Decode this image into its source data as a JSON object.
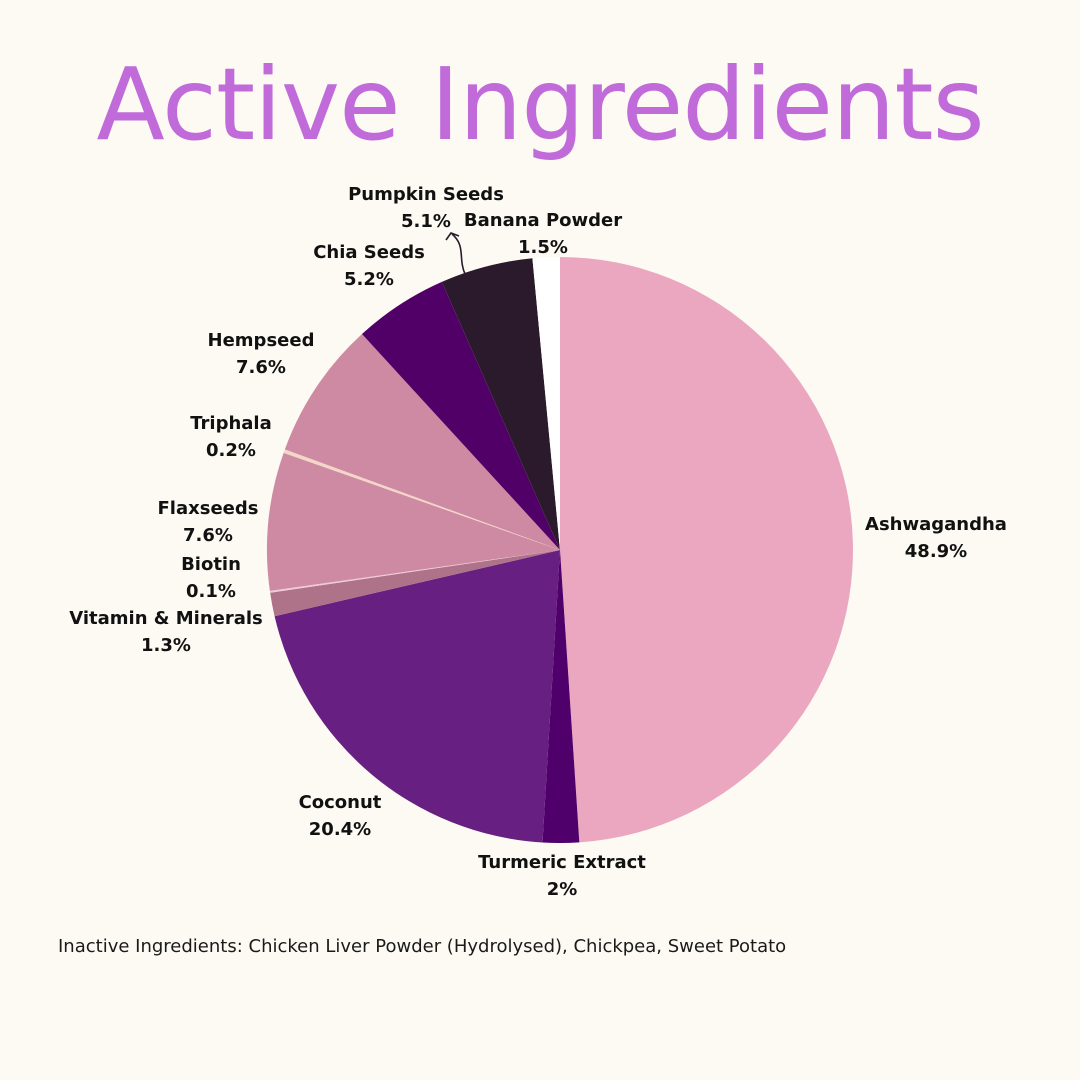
{
  "title": "Active Ingredients",
  "footnote": "Inactive Ingredients: Chicken Liver Powder (Hydrolysed), Chickpea, Sweet Potato",
  "chart_data": {
    "type": "pie",
    "title": "Active Ingredients",
    "start_angle_deg": 0,
    "direction": "clockwise",
    "slices": [
      {
        "label": "Ashwagandha",
        "value_label": "48.9%",
        "value": 48.9,
        "color": "#EAA7BF"
      },
      {
        "label": "Turmeric Extract",
        "value_label": "2%",
        "value": 2.0,
        "color": "#4F006A"
      },
      {
        "label": "Coconut",
        "value_label": "20.4%",
        "value": 20.4,
        "color": "#681F82"
      },
      {
        "label": "Vitamin & Minerals",
        "value_label": "1.3%",
        "value": 1.3,
        "color": "#AE7388"
      },
      {
        "label": "Biotin",
        "value_label": "0.1%",
        "value": 0.1,
        "color": "#F1C9D8"
      },
      {
        "label": "Flaxseeds",
        "value_label": "7.6%",
        "value": 7.6,
        "color": "#CE8AA3"
      },
      {
        "label": "Triphala",
        "value_label": "0.2%",
        "value": 0.2,
        "color": "#F3D6C8"
      },
      {
        "label": "Hempseed",
        "value_label": "7.6%",
        "value": 7.6,
        "color": "#CE8AA3"
      },
      {
        "label": "Chia Seeds",
        "value_label": "5.2%",
        "value": 5.2,
        "color": "#510068"
      },
      {
        "label": "Pumpkin Seeds",
        "value_label": "5.1%",
        "value": 5.1,
        "color": "#2B1A2C"
      },
      {
        "label": "Banana Powder",
        "value_label": "1.5%",
        "value": 1.5,
        "color": "#FFFFFF"
      }
    ]
  }
}
